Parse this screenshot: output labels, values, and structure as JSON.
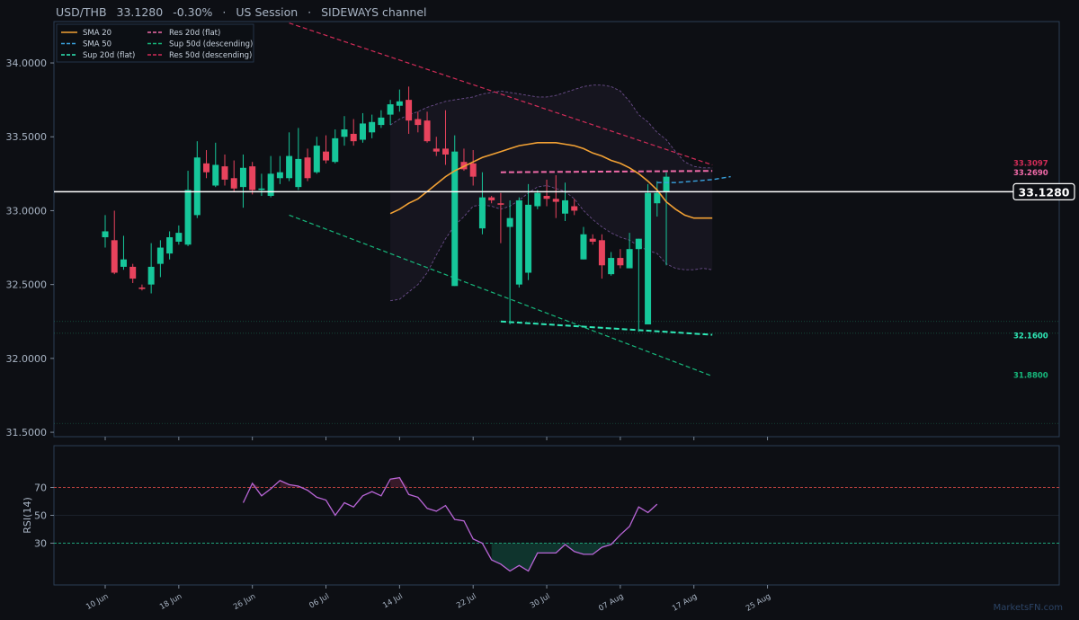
{
  "header": {
    "pair": "USD/THB",
    "price": "33.1280",
    "change": "-0.30%",
    "sep1": "·",
    "session": "US Session",
    "sep2": "·",
    "channel": "SIDEWAYS channel"
  },
  "colors": {
    "background": "#0d0f14",
    "panel_border": "#2a3d55",
    "up": "#16c79a",
    "down": "#e8435d",
    "sma20": "#f2a134",
    "sma50": "#3aa3e0",
    "sup20": "#2ee8b6",
    "sup50": "#17b87c",
    "res20": "#f06aa8",
    "res50": "#d22c58",
    "rsi": "#b865d6",
    "bands": "#6a4d8a",
    "last_price_line": "#ffffff"
  },
  "watermark": "MarketsFN.com",
  "chart_data": [
    {
      "type": "candlestick",
      "title": "USD/THB",
      "ylim": [
        31.47,
        34.28
      ],
      "yticks": [
        "31.5000",
        "32.0000",
        "32.5000",
        "33.0000",
        "33.5000",
        "34.0000"
      ],
      "ytick_values": [
        31.5,
        32.0,
        32.5,
        33.0,
        33.5,
        34.0
      ],
      "xtick_labels": [
        "10 Jun",
        "18 Jun",
        "26 Jun",
        "06 Jul",
        "14 Jul",
        "22 Jul",
        "30 Jul",
        "07 Aug",
        "17 Aug",
        "25 Aug"
      ],
      "xtick_index": [
        0,
        8,
        16,
        24,
        32,
        40,
        48,
        56,
        64,
        72
      ],
      "grid": false,
      "legend": {
        "position": "top-left",
        "entries": [
          {
            "label": "SMA 20",
            "color": "#f2a134",
            "dash": "solid"
          },
          {
            "label": "SMA 50",
            "color": "#3aa3e0",
            "dash": "dashed"
          },
          {
            "label": "Sup 20d (flat)",
            "color": "#2ee8b6",
            "dash": "dashed"
          },
          {
            "label": "Res 20d (flat)",
            "color": "#f06aa8",
            "dash": "dashed"
          },
          {
            "label": "Sup 50d (descending)",
            "color": "#17b87c",
            "dash": "dashed"
          },
          {
            "label": "Res 50d (descending)",
            "color": "#d22c58",
            "dash": "dashed"
          }
        ]
      },
      "candles": [
        {
          "o": 32.82,
          "h": 32.97,
          "l": 32.75,
          "c": 32.86
        },
        {
          "o": 32.8,
          "h": 33.0,
          "l": 32.57,
          "c": 32.58
        },
        {
          "o": 32.62,
          "h": 32.83,
          "l": 32.6,
          "c": 32.67
        },
        {
          "o": 32.62,
          "h": 32.64,
          "l": 32.51,
          "c": 32.54
        },
        {
          "o": 32.48,
          "h": 32.5,
          "l": 32.46,
          "c": 32.47
        },
        {
          "o": 32.5,
          "h": 32.78,
          "l": 32.44,
          "c": 32.62
        },
        {
          "o": 32.64,
          "h": 32.8,
          "l": 32.55,
          "c": 32.75
        },
        {
          "o": 32.71,
          "h": 32.86,
          "l": 32.67,
          "c": 32.82
        },
        {
          "o": 32.79,
          "h": 32.9,
          "l": 32.77,
          "c": 32.85
        },
        {
          "o": 32.77,
          "h": 33.27,
          "l": 32.76,
          "c": 33.14
        },
        {
          "o": 32.97,
          "h": 33.47,
          "l": 32.95,
          "c": 33.36
        },
        {
          "o": 33.32,
          "h": 33.41,
          "l": 33.22,
          "c": 33.26
        },
        {
          "o": 33.17,
          "h": 33.46,
          "l": 33.16,
          "c": 33.31
        },
        {
          "o": 33.3,
          "h": 33.38,
          "l": 33.17,
          "c": 33.21
        },
        {
          "o": 33.22,
          "h": 33.34,
          "l": 33.13,
          "c": 33.15
        },
        {
          "o": 33.16,
          "h": 33.38,
          "l": 33.02,
          "c": 33.29
        },
        {
          "o": 33.3,
          "h": 33.33,
          "l": 33.11,
          "c": 33.14
        },
        {
          "o": 33.14,
          "h": 33.25,
          "l": 33.1,
          "c": 33.15
        },
        {
          "o": 33.1,
          "h": 33.37,
          "l": 33.09,
          "c": 33.25
        },
        {
          "o": 33.22,
          "h": 33.37,
          "l": 33.18,
          "c": 33.26
        },
        {
          "o": 33.22,
          "h": 33.53,
          "l": 33.2,
          "c": 33.37
        },
        {
          "o": 33.16,
          "h": 33.56,
          "l": 33.14,
          "c": 33.35
        },
        {
          "o": 33.36,
          "h": 33.42,
          "l": 33.2,
          "c": 33.22
        },
        {
          "o": 33.26,
          "h": 33.5,
          "l": 33.25,
          "c": 33.44
        },
        {
          "o": 33.4,
          "h": 33.51,
          "l": 33.32,
          "c": 33.34
        },
        {
          "o": 33.33,
          "h": 33.55,
          "l": 33.32,
          "c": 33.49
        },
        {
          "o": 33.5,
          "h": 33.64,
          "l": 33.44,
          "c": 33.55
        },
        {
          "o": 33.52,
          "h": 33.62,
          "l": 33.44,
          "c": 33.47
        },
        {
          "o": 33.48,
          "h": 33.66,
          "l": 33.46,
          "c": 33.59
        },
        {
          "o": 33.53,
          "h": 33.65,
          "l": 33.49,
          "c": 33.6
        },
        {
          "o": 33.58,
          "h": 33.68,
          "l": 33.56,
          "c": 33.63
        },
        {
          "o": 33.65,
          "h": 33.75,
          "l": 33.58,
          "c": 33.72
        },
        {
          "o": 33.71,
          "h": 33.82,
          "l": 33.67,
          "c": 33.74
        },
        {
          "o": 33.75,
          "h": 33.84,
          "l": 33.52,
          "c": 33.61
        },
        {
          "o": 33.62,
          "h": 33.67,
          "l": 33.53,
          "c": 33.58
        },
        {
          "o": 33.61,
          "h": 33.67,
          "l": 33.46,
          "c": 33.47
        },
        {
          "o": 33.42,
          "h": 33.5,
          "l": 33.37,
          "c": 33.4
        },
        {
          "o": 33.42,
          "h": 33.68,
          "l": 33.31,
          "c": 33.38
        },
        {
          "o": 32.49,
          "h": 33.51,
          "l": 32.49,
          "c": 33.4
        },
        {
          "o": 33.33,
          "h": 33.42,
          "l": 33.27,
          "c": 33.28
        },
        {
          "o": 33.32,
          "h": 33.41,
          "l": 33.17,
          "c": 33.23
        },
        {
          "o": 32.88,
          "h": 33.26,
          "l": 32.84,
          "c": 33.09
        },
        {
          "o": 33.09,
          "h": 33.1,
          "l": 33.05,
          "c": 33.07
        },
        {
          "o": 33.05,
          "h": 33.12,
          "l": 32.78,
          "c": 33.04
        },
        {
          "o": 32.89,
          "h": 33.07,
          "l": 32.23,
          "c": 32.95
        },
        {
          "o": 32.5,
          "h": 33.09,
          "l": 32.48,
          "c": 33.07
        },
        {
          "o": 32.58,
          "h": 33.18,
          "l": 32.53,
          "c": 33.04
        },
        {
          "o": 33.03,
          "h": 33.14,
          "l": 33.01,
          "c": 33.12
        },
        {
          "o": 33.1,
          "h": 33.21,
          "l": 33.03,
          "c": 33.08
        },
        {
          "o": 33.08,
          "h": 33.24,
          "l": 32.95,
          "c": 33.06
        },
        {
          "o": 32.98,
          "h": 33.19,
          "l": 32.93,
          "c": 33.07
        },
        {
          "o": 33.03,
          "h": 33.08,
          "l": 32.97,
          "c": 33.0
        },
        {
          "o": 32.67,
          "h": 32.89,
          "l": 32.67,
          "c": 32.84
        },
        {
          "o": 32.81,
          "h": 32.84,
          "l": 32.77,
          "c": 32.79
        },
        {
          "o": 32.8,
          "h": 32.84,
          "l": 32.54,
          "c": 32.63
        },
        {
          "o": 32.57,
          "h": 32.72,
          "l": 32.56,
          "c": 32.68
        },
        {
          "o": 32.68,
          "h": 32.74,
          "l": 32.61,
          "c": 32.63
        },
        {
          "o": 32.61,
          "h": 32.85,
          "l": 32.61,
          "c": 32.74
        },
        {
          "o": 32.74,
          "h": 32.81,
          "l": 32.18,
          "c": 32.81
        },
        {
          "o": 32.23,
          "h": 33.18,
          "l": 32.23,
          "c": 33.12
        },
        {
          "o": 33.05,
          "h": 33.2,
          "l": 32.96,
          "c": 33.12
        },
        {
          "o": 33.13,
          "h": 33.26,
          "l": 32.63,
          "c": 33.23
        }
      ],
      "sma20": [
        [
          31,
          32.98
        ],
        [
          32,
          33.01
        ],
        [
          33,
          33.05
        ],
        [
          34,
          33.08
        ],
        [
          35,
          33.13
        ],
        [
          36,
          33.18
        ],
        [
          37,
          33.23
        ],
        [
          38,
          33.27
        ],
        [
          39,
          33.3
        ],
        [
          40,
          33.33
        ],
        [
          41,
          33.36
        ],
        [
          42,
          33.38
        ],
        [
          43,
          33.4
        ],
        [
          44,
          33.42
        ],
        [
          45,
          33.44
        ],
        [
          46,
          33.45
        ],
        [
          47,
          33.46
        ],
        [
          48,
          33.46
        ],
        [
          49,
          33.46
        ],
        [
          50,
          33.45
        ],
        [
          51,
          33.44
        ],
        [
          52,
          33.42
        ],
        [
          53,
          33.39
        ],
        [
          54,
          33.37
        ],
        [
          55,
          33.34
        ],
        [
          56,
          33.32
        ],
        [
          57,
          33.29
        ],
        [
          58,
          33.25
        ],
        [
          59,
          33.2
        ],
        [
          60,
          33.14
        ],
        [
          61,
          33.06
        ],
        [
          62,
          33.01
        ],
        [
          63,
          32.97
        ],
        [
          64,
          32.95
        ],
        [
          65,
          32.95
        ],
        [
          66,
          32.95
        ]
      ],
      "sma50": [
        [
          60,
          33.19
        ],
        [
          62,
          33.19
        ],
        [
          64,
          33.2
        ],
        [
          66,
          33.21
        ],
        [
          68,
          33.23
        ]
      ],
      "bb_upper": [
        [
          31,
          33.58
        ],
        [
          32,
          33.62
        ],
        [
          33,
          33.65
        ],
        [
          34,
          33.67
        ],
        [
          35,
          33.7
        ],
        [
          36,
          33.72
        ],
        [
          37,
          33.74
        ],
        [
          38,
          33.75
        ],
        [
          39,
          33.76
        ],
        [
          40,
          33.77
        ],
        [
          41,
          33.79
        ],
        [
          42,
          33.8
        ],
        [
          43,
          33.81
        ],
        [
          44,
          33.8
        ],
        [
          45,
          33.79
        ],
        [
          46,
          33.78
        ],
        [
          47,
          33.77
        ],
        [
          48,
          33.77
        ],
        [
          49,
          33.78
        ],
        [
          50,
          33.8
        ],
        [
          51,
          33.82
        ],
        [
          52,
          33.84
        ],
        [
          53,
          33.85
        ],
        [
          54,
          33.85
        ],
        [
          55,
          33.84
        ],
        [
          56,
          33.81
        ],
        [
          57,
          33.74
        ],
        [
          58,
          33.65
        ],
        [
          59,
          33.6
        ],
        [
          60,
          33.53
        ],
        [
          61,
          33.48
        ],
        [
          62,
          33.4
        ],
        [
          63,
          33.33
        ],
        [
          64,
          33.3
        ],
        [
          65,
          33.29
        ],
        [
          66,
          33.29
        ]
      ],
      "bb_lower": [
        [
          31,
          32.39
        ],
        [
          32,
          32.4
        ],
        [
          33,
          32.45
        ],
        [
          34,
          32.5
        ],
        [
          35,
          32.58
        ],
        [
          36,
          32.7
        ],
        [
          37,
          32.81
        ],
        [
          38,
          32.9
        ],
        [
          39,
          32.96
        ],
        [
          40,
          33.03
        ],
        [
          41,
          33.04
        ],
        [
          42,
          33.03
        ],
        [
          43,
          33.01
        ],
        [
          44,
          33.03
        ],
        [
          45,
          33.07
        ],
        [
          46,
          33.12
        ],
        [
          47,
          33.16
        ],
        [
          48,
          33.17
        ],
        [
          49,
          33.15
        ],
        [
          50,
          33.13
        ],
        [
          51,
          33.08
        ],
        [
          52,
          33.0
        ],
        [
          53,
          32.94
        ],
        [
          54,
          32.89
        ],
        [
          55,
          32.85
        ],
        [
          56,
          32.82
        ],
        [
          57,
          32.8
        ],
        [
          58,
          32.76
        ],
        [
          59,
          32.73
        ],
        [
          60,
          32.71
        ],
        [
          61,
          32.64
        ],
        [
          62,
          32.61
        ],
        [
          63,
          32.6
        ],
        [
          64,
          32.6
        ],
        [
          65,
          32.61
        ],
        [
          66,
          32.6
        ]
      ],
      "res20": {
        "x": [
          43,
          66
        ],
        "y": [
          33.26,
          33.269
        ],
        "label": "33.2690"
      },
      "sup20": {
        "x": [
          43,
          66
        ],
        "y": [
          32.25,
          32.16
        ],
        "label": "32.1600"
      },
      "res50": {
        "x": [
          20,
          66
        ],
        "y": [
          34.27,
          33.3097
        ],
        "label": "33.3097"
      },
      "sup50": {
        "x": [
          20,
          66
        ],
        "y": [
          32.97,
          31.88
        ],
        "label": "31.8800"
      },
      "hlines": [
        32.25,
        32.17,
        31.56
      ],
      "last_price": {
        "value": 33.128,
        "label": "33.1280"
      }
    },
    {
      "type": "line",
      "ylabel": "RSI(14)",
      "ylim": [
        0,
        100
      ],
      "yticks": [
        "30",
        "50",
        "70"
      ],
      "ytick_values": [
        30,
        50,
        70
      ],
      "overbought": 70,
      "oversold": 30,
      "series": [
        {
          "values": [
            [
              15,
              59
            ],
            [
              16,
              73
            ],
            [
              17,
              64
            ],
            [
              18,
              69
            ],
            [
              19,
              75
            ],
            [
              20,
              72
            ],
            [
              21,
              71
            ],
            [
              22,
              68
            ],
            [
              23,
              63
            ],
            [
              24,
              61
            ],
            [
              25,
              50
            ],
            [
              26,
              59
            ],
            [
              27,
              56
            ],
            [
              28,
              64
            ],
            [
              29,
              67
            ],
            [
              30,
              64
            ],
            [
              31,
              76
            ],
            [
              32,
              77
            ],
            [
              33,
              65
            ],
            [
              34,
              63
            ],
            [
              35,
              55
            ],
            [
              36,
              53
            ],
            [
              37,
              57
            ],
            [
              38,
              47
            ],
            [
              39,
              46
            ],
            [
              40,
              33
            ],
            [
              41,
              30
            ],
            [
              42,
              18
            ],
            [
              43,
              15
            ],
            [
              44,
              10
            ],
            [
              45,
              14
            ],
            [
              46,
              10
            ],
            [
              47,
              23
            ],
            [
              48,
              23
            ],
            [
              49,
              23
            ],
            [
              50,
              29
            ],
            [
              51,
              24
            ],
            [
              52,
              22
            ],
            [
              53,
              22
            ],
            [
              54,
              27
            ],
            [
              55,
              29
            ],
            [
              56,
              36
            ],
            [
              57,
              42
            ],
            [
              58,
              56
            ],
            [
              59,
              52
            ],
            [
              60,
              58
            ]
          ]
        }
      ]
    }
  ]
}
